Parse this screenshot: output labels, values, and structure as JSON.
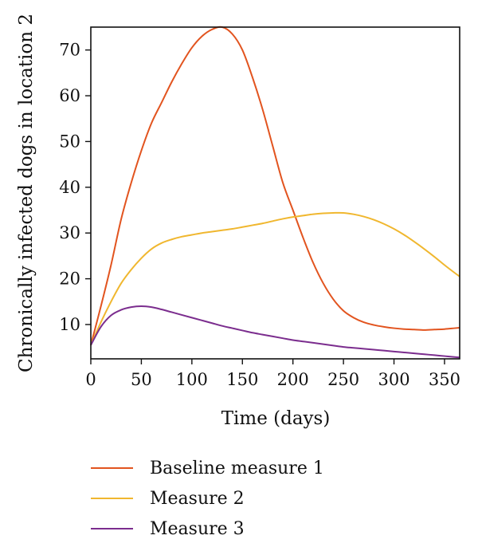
{
  "chart_data": {
    "type": "line",
    "xlabel": "Time (days)",
    "ylabel": "Chronically infected dogs in location 2",
    "xlim": [
      0,
      365
    ],
    "ylim": [
      2.5,
      75
    ],
    "xticks": [
      0,
      50,
      100,
      150,
      200,
      250,
      300,
      350
    ],
    "yticks": [
      10,
      20,
      30,
      40,
      50,
      60,
      70
    ],
    "grid": false,
    "legend_position": "bottom",
    "series": [
      {
        "name": "Baseline measure 1",
        "color": "#e2541f",
        "x": [
          0,
          10,
          20,
          30,
          40,
          50,
          60,
          70,
          80,
          90,
          100,
          110,
          120,
          130,
          140,
          150,
          160,
          170,
          180,
          190,
          200,
          210,
          220,
          230,
          240,
          250,
          260,
          270,
          280,
          290,
          300,
          310,
          320,
          330,
          340,
          350,
          360,
          365
        ],
        "y": [
          5.5,
          14,
          23,
          33,
          41,
          48,
          54,
          58.5,
          63,
          67,
          70.5,
          73,
          74.5,
          75,
          73.5,
          70,
          64,
          57,
          49,
          41,
          35,
          29,
          23.5,
          19,
          15.5,
          13,
          11.5,
          10.5,
          9.9,
          9.5,
          9.2,
          9.0,
          8.9,
          8.8,
          8.9,
          9.0,
          9.2,
          9.3
        ]
      },
      {
        "name": "Measure 2",
        "color": "#f0b72f",
        "x": [
          0,
          10,
          20,
          30,
          40,
          50,
          60,
          70,
          80,
          90,
          100,
          110,
          120,
          130,
          140,
          150,
          160,
          170,
          180,
          190,
          200,
          210,
          220,
          230,
          240,
          250,
          260,
          270,
          280,
          290,
          300,
          310,
          320,
          330,
          340,
          350,
          360,
          365
        ],
        "y": [
          5.5,
          10.5,
          15,
          19,
          22,
          24.5,
          26.5,
          27.8,
          28.6,
          29.2,
          29.6,
          30.0,
          30.3,
          30.6,
          30.9,
          31.3,
          31.7,
          32.1,
          32.6,
          33.1,
          33.5,
          33.8,
          34.1,
          34.3,
          34.4,
          34.4,
          34.1,
          33.6,
          32.9,
          32.0,
          30.9,
          29.6,
          28.1,
          26.5,
          24.8,
          23.0,
          21.3,
          20.5
        ]
      },
      {
        "name": "Measure 3",
        "color": "#7b2d8e",
        "x": [
          0,
          10,
          20,
          30,
          40,
          50,
          60,
          70,
          80,
          90,
          100,
          110,
          120,
          130,
          140,
          150,
          160,
          170,
          180,
          190,
          200,
          210,
          220,
          230,
          240,
          250,
          260,
          270,
          280,
          290,
          300,
          310,
          320,
          330,
          340,
          350,
          360,
          365
        ],
        "y": [
          5.5,
          9.5,
          12,
          13.2,
          13.8,
          14.0,
          13.8,
          13.3,
          12.7,
          12.1,
          11.5,
          10.9,
          10.3,
          9.7,
          9.2,
          8.7,
          8.2,
          7.8,
          7.4,
          7.0,
          6.6,
          6.3,
          6.0,
          5.7,
          5.4,
          5.1,
          4.9,
          4.7,
          4.5,
          4.3,
          4.1,
          3.9,
          3.7,
          3.5,
          3.3,
          3.1,
          2.9,
          2.8
        ]
      }
    ]
  }
}
